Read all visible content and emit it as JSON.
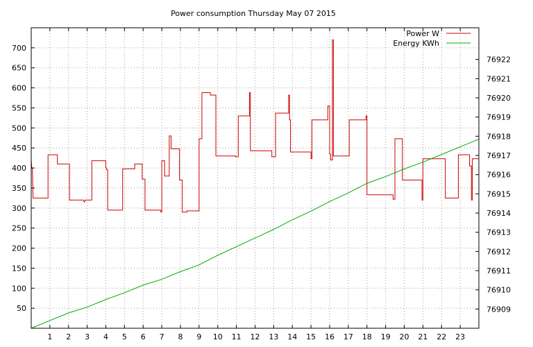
{
  "chart_data": {
    "type": "line",
    "title": "Power consumption Thursday May 07 2015",
    "xlabel": "",
    "ylabel": "",
    "xlim": [
      0,
      24
    ],
    "ylim": [
      0,
      750
    ],
    "y2lim": [
      76908,
      76923.65
    ],
    "grid": true,
    "legend_position": "top-right",
    "x_ticks": [
      1,
      2,
      3,
      4,
      5,
      6,
      7,
      8,
      9,
      10,
      11,
      12,
      13,
      14,
      15,
      16,
      17,
      18,
      19,
      20,
      21,
      22,
      23
    ],
    "x_tick_labels": [
      "1",
      "2",
      "3",
      "4",
      "5",
      "6",
      "7",
      "8",
      "9",
      "10",
      "11",
      "12",
      "13",
      "14",
      "15",
      "16",
      "17",
      "18",
      "19",
      "20",
      "21",
      "22",
      "23"
    ],
    "y_ticks": [
      50,
      100,
      150,
      200,
      250,
      300,
      350,
      400,
      450,
      500,
      550,
      600,
      650,
      700
    ],
    "y_tick_labels": [
      "50",
      "100",
      "150",
      "200",
      "250",
      "300",
      "350",
      "400",
      "450",
      "500",
      "550",
      "600",
      "650",
      "700"
    ],
    "y2_ticks": [
      76909,
      76910,
      76911,
      76912,
      76913,
      76914,
      76915,
      76916,
      76917,
      76918,
      76919,
      76920,
      76921,
      76922
    ],
    "y2_tick_labels": [
      "76909",
      "76910",
      "76911",
      "76912",
      "76913",
      "76914",
      "76915",
      "76916",
      "76917",
      "76918",
      "76919",
      "76920",
      "76921",
      "76922"
    ],
    "series": [
      {
        "name": "Power W",
        "axis": "left",
        "color": "#cc0000",
        "step": true,
        "x": [
          0,
          0.03,
          0.06,
          0.1,
          0.15,
          0.9,
          0.9,
          1.4,
          1.4,
          2.05,
          2.05,
          2.6,
          2.8,
          2.85,
          2.9,
          3.25,
          3.25,
          4.0,
          4.0,
          4.05,
          4.05,
          4.1,
          4.1,
          4.9,
          4.9,
          5.55,
          5.55,
          5.95,
          5.95,
          6.1,
          6.1,
          6.95,
          6.95,
          7.0,
          7.0,
          7.15,
          7.15,
          7.4,
          7.4,
          7.45,
          7.45,
          7.5,
          7.5,
          7.95,
          7.95,
          8.1,
          8.1,
          8.35,
          8.35,
          9.0,
          9.0,
          9.15,
          9.15,
          9.6,
          9.6,
          9.9,
          9.9,
          10.95,
          10.95,
          11.1,
          11.1,
          11.7,
          11.7,
          11.75,
          11.75,
          12.9,
          12.9,
          13.1,
          13.1,
          13.8,
          13.8,
          13.85,
          13.85,
          13.9,
          13.9,
          15.0,
          15.0,
          15.05,
          15.05,
          15.9,
          15.9,
          16.0,
          16.0,
          16.05,
          16.05,
          16.15,
          16.15,
          16.2,
          16.2,
          16.25,
          16.25,
          16.3,
          16.3,
          17.05,
          17.05,
          17.95,
          17.95,
          18.0,
          18.0,
          19.4,
          19.4,
          19.5,
          19.5,
          19.9,
          19.9,
          20.95,
          20.95,
          21.0,
          21.0,
          21.05,
          21.05,
          22.2,
          22.2,
          22.9,
          22.9,
          23.5,
          23.5,
          23.6,
          23.6,
          23.65,
          23.65,
          24.0
        ],
        "values": [
          420,
          400,
          400,
          325,
          325,
          325,
          433,
          433,
          410,
          410,
          320,
          320,
          320,
          315,
          320,
          320,
          418,
          418,
          400,
          400,
          395,
          395,
          295,
          295,
          398,
          398,
          410,
          410,
          372,
          372,
          295,
          295,
          290,
          290,
          418,
          418,
          380,
          380,
          480,
          480,
          480,
          480,
          448,
          448,
          370,
          370,
          290,
          290,
          293,
          293,
          473,
          473,
          588,
          588,
          582,
          582,
          430,
          430,
          428,
          428,
          530,
          530,
          588,
          588,
          443,
          443,
          428,
          428,
          537,
          537,
          582,
          582,
          520,
          520,
          440,
          440,
          423,
          423,
          520,
          520,
          555,
          555,
          435,
          435,
          420,
          420,
          720,
          720,
          430,
          430,
          430,
          430,
          430,
          430,
          520,
          520,
          530,
          530,
          333,
          333,
          322,
          322,
          473,
          473,
          370,
          370,
          320,
          320,
          423,
          423,
          423,
          423,
          325,
          325,
          433,
          433,
          405,
          405,
          320,
          320,
          423,
          423
        ]
      },
      {
        "name": "Energy KWh",
        "axis": "right",
        "color": "#00aa00",
        "x": [
          0,
          1,
          2,
          3,
          4,
          5,
          6,
          7,
          8,
          9,
          10,
          11,
          12,
          13,
          14,
          15,
          16,
          17,
          18,
          19,
          20,
          21,
          22,
          23,
          24
        ],
        "values": [
          76908.0,
          76908.4,
          76908.8,
          76909.1,
          76909.5,
          76909.85,
          76910.25,
          76910.55,
          76910.95,
          76911.3,
          76911.8,
          76912.25,
          76912.7,
          76913.15,
          76913.65,
          76914.1,
          76914.6,
          76915.05,
          76915.55,
          76915.9,
          76916.3,
          76916.65,
          76917.05,
          76917.45,
          76917.85
        ]
      }
    ]
  }
}
